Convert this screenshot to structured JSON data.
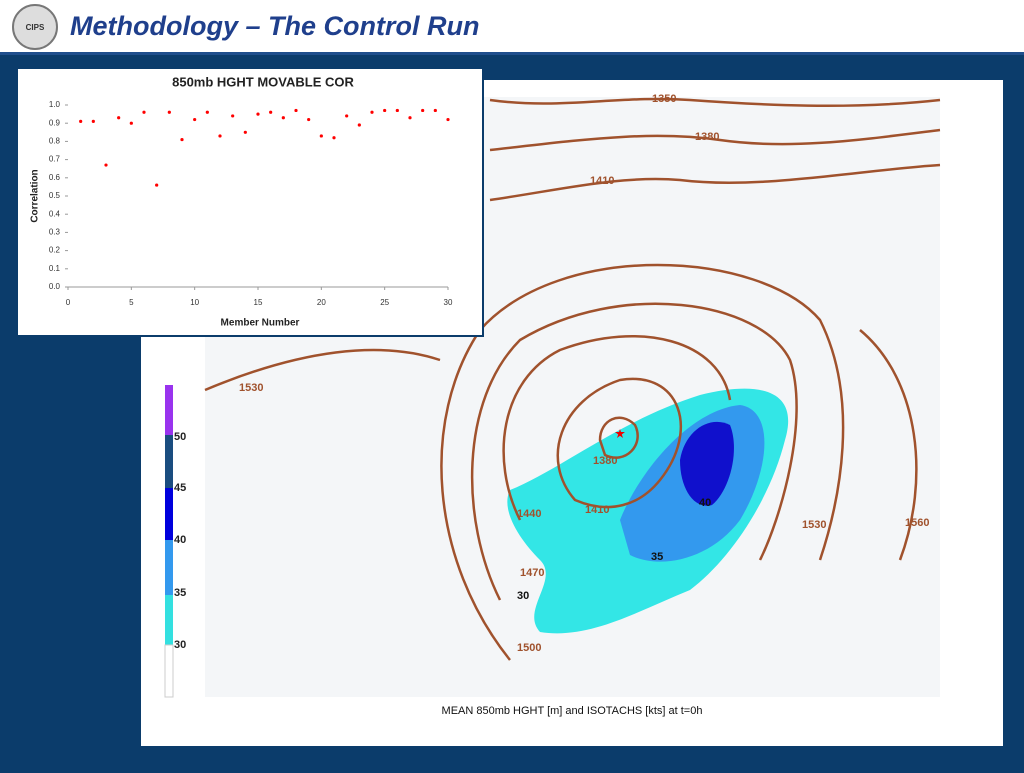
{
  "header": {
    "title": "Methodology – The Control Run",
    "logo_text": "CIPS"
  },
  "chart_data": {
    "type": "scatter",
    "title": "850mb HGHT MOVABLE COR",
    "x_label": "Member Number",
    "y_label": "Correlation",
    "x": [
      1,
      2,
      3,
      4,
      5,
      6,
      7,
      8,
      9,
      10,
      11,
      12,
      13,
      14,
      15,
      16,
      17,
      18,
      19,
      20,
      21,
      22,
      23,
      24,
      25,
      26,
      27,
      28,
      29,
      30
    ],
    "values": [
      0.91,
      0.91,
      0.67,
      0.93,
      0.9,
      0.96,
      0.56,
      0.96,
      0.81,
      0.92,
      0.96,
      0.83,
      0.94,
      0.85,
      0.95,
      0.96,
      0.93,
      0.97,
      0.92,
      0.83,
      0.82,
      0.94,
      0.89,
      0.96,
      0.97,
      0.97,
      0.93,
      0.97,
      0.97,
      0.92
    ],
    "color": "#ff0000",
    "xlim": [
      0,
      30
    ],
    "xticks": [
      0,
      5,
      10,
      15,
      20,
      25,
      30
    ],
    "ylim": [
      0,
      1
    ],
    "yticks": [
      {
        "value": 0,
        "label": "0.0"
      },
      0.1,
      0.2,
      0.3,
      0.4,
      0.5,
      0.6,
      0.7,
      0.8,
      0.9,
      {
        "value": 1,
        "label": "1.0"
      }
    ]
  },
  "map": {
    "caption": "MEAN 850mb HGHT [m] and ISOTACHS [kts] at t=0h",
    "colorbar": [
      30,
      35,
      40,
      45,
      50
    ],
    "contour_labels": [
      1350,
      1380,
      1410,
      1530,
      1380,
      1410,
      1440,
      1470,
      1500,
      1530,
      1560
    ],
    "isotach_labels": [
      40,
      35,
      30
    ]
  }
}
